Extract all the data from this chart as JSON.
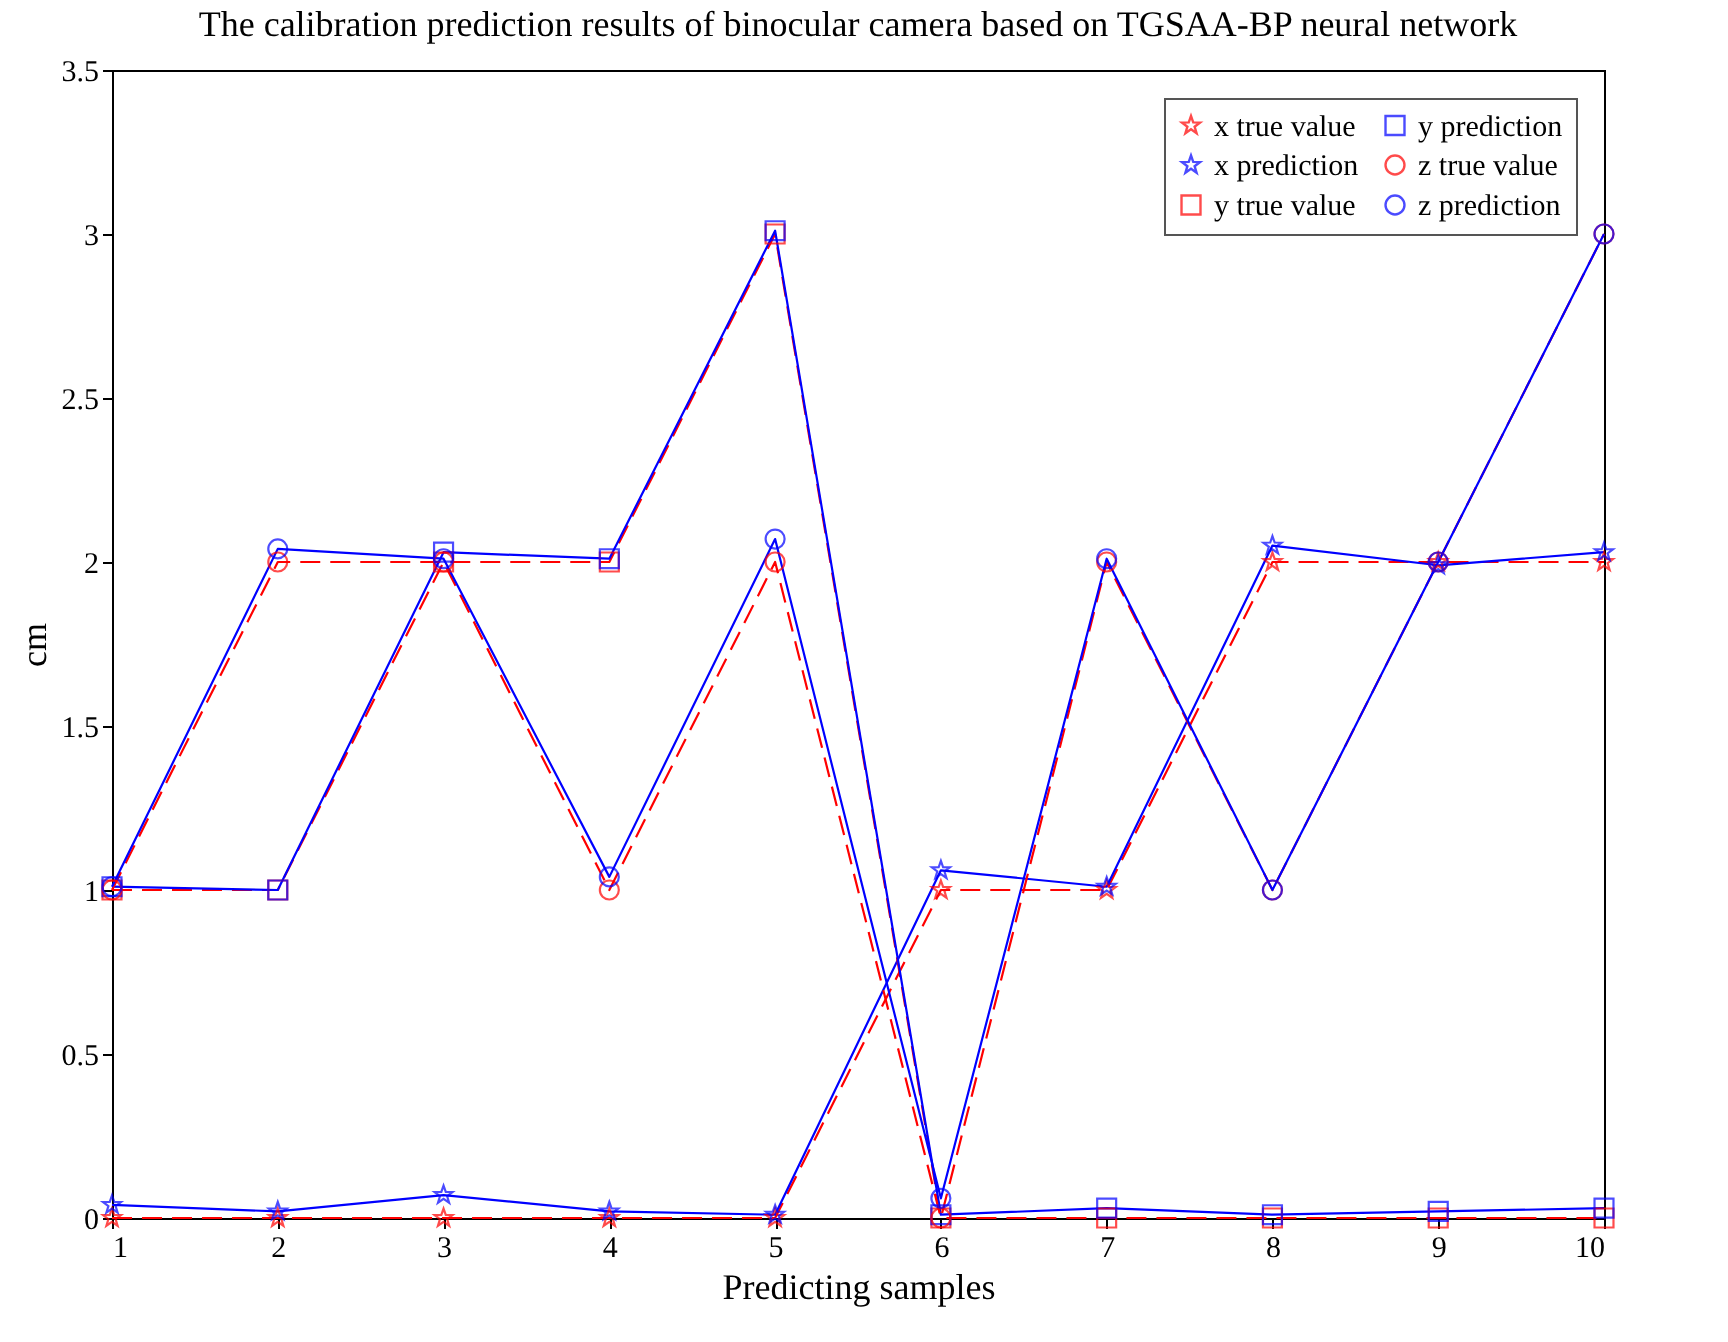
{
  "chart_data": {
    "type": "line",
    "title": "The calibration prediction results of binocular camera based on TGSAA-BP neural network",
    "xlabel": "Predicting samples",
    "ylabel": "cm",
    "x": [
      1,
      2,
      3,
      4,
      5,
      6,
      7,
      8,
      9,
      10
    ],
    "xlim": [
      1,
      10
    ],
    "xticks": [
      1,
      2,
      3,
      4,
      5,
      6,
      7,
      8,
      9,
      10
    ],
    "ylim": [
      0,
      3.5
    ],
    "yticks": [
      0,
      0.5,
      1,
      1.5,
      2,
      2.5,
      3,
      3.5
    ],
    "grid": false,
    "legend": "top right",
    "series": [
      {
        "name": "x true value",
        "color": "#ff0000",
        "marker": "star",
        "line_style": "dashed",
        "values": [
          0,
          0,
          0,
          0,
          0,
          1,
          1,
          2,
          2,
          2
        ]
      },
      {
        "name": "x prediction",
        "color": "#0000ff",
        "marker": "star",
        "line_style": "solid",
        "values": [
          0.04,
          0.02,
          0.07,
          0.02,
          0.01,
          1.06,
          1.01,
          2.05,
          1.99,
          2.03
        ]
      },
      {
        "name": "y true value",
        "color": "#ff0000",
        "marker": "square",
        "line_style": "dashed",
        "values": [
          1,
          1,
          2,
          2,
          3,
          0,
          0,
          0,
          0,
          0
        ]
      },
      {
        "name": "y prediction",
        "color": "#0000ff",
        "marker": "square",
        "line_style": "solid",
        "values": [
          1.01,
          1,
          2.03,
          2.01,
          3.01,
          0.01,
          0.03,
          0.01,
          0.02,
          0.03
        ]
      },
      {
        "name": "z true value",
        "color": "#ff0000",
        "marker": "circle",
        "line_style": "dashed",
        "values": [
          1,
          2,
          2,
          1,
          2,
          0,
          2,
          1,
          2,
          3
        ]
      },
      {
        "name": "z prediction",
        "color": "#0000ff",
        "marker": "circle",
        "line_style": "solid",
        "values": [
          1.01,
          2.04,
          2.01,
          1.04,
          2.07,
          0.06,
          2.01,
          1,
          2,
          3
        ]
      }
    ]
  }
}
